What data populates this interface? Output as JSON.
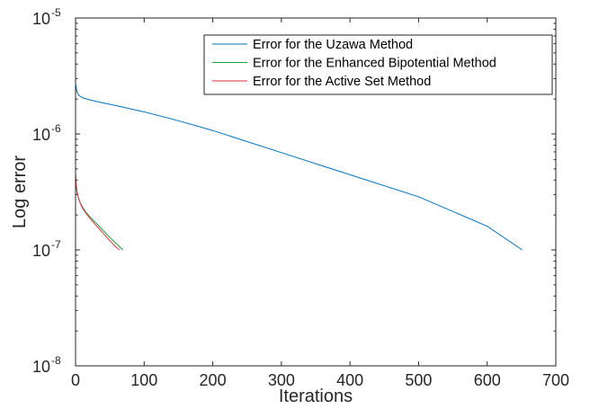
{
  "chart_data": {
    "type": "line",
    "xlabel": "Iterations",
    "ylabel": "Log error",
    "xlim": [
      0,
      700
    ],
    "ylim": [
      1e-08,
      1e-05
    ],
    "yscale": "log",
    "x_ticks": [
      "0",
      "100",
      "200",
      "300",
      "400",
      "500",
      "600",
      "700"
    ],
    "y_ticks": [
      {
        "base": "10",
        "exp": "-8"
      },
      {
        "base": "10",
        "exp": "-7"
      },
      {
        "base": "10",
        "exp": "-6"
      },
      {
        "base": "10",
        "exp": "-5"
      }
    ],
    "grid": false,
    "legend_position": "top-right",
    "series": [
      {
        "name": "Error for the Uzawa Method",
        "color": "#0072BD",
        "x": [
          0,
          2,
          5,
          10,
          20,
          40,
          60,
          100,
          150,
          200,
          300,
          400,
          500,
          600,
          651
        ],
        "y": [
          2.7e-06,
          2.3e-06,
          2.15e-06,
          2.05e-06,
          1.97e-06,
          1.85e-06,
          1.75e-06,
          1.55e-06,
          1.3e-06,
          1.07e-06,
          6.9e-07,
          4.45e-07,
          2.87e-07,
          1.6e-07,
          1e-07
        ]
      },
      {
        "name": "Error for the Enhanced Bipotential Method",
        "color": "#1A9E3A",
        "x": [
          0,
          1,
          2,
          4,
          6,
          10,
          15,
          20,
          30,
          40,
          50,
          60,
          69
        ],
        "y": [
          4.4e-07,
          3.6e-07,
          3.2e-07,
          2.85e-07,
          2.6e-07,
          2.35e-07,
          2.12e-07,
          1.95e-07,
          1.7e-07,
          1.48e-07,
          1.28e-07,
          1.12e-07,
          1e-07
        ]
      },
      {
        "name": "Error for the Active Set Method",
        "color": "#D9303A",
        "x": [
          0,
          1,
          2,
          4,
          6,
          10,
          15,
          20,
          30,
          40,
          50,
          60,
          64
        ],
        "y": [
          4.6e-07,
          3.6e-07,
          3.2e-07,
          2.85e-07,
          2.6e-07,
          2.3e-07,
          2.08e-07,
          1.9e-07,
          1.62e-07,
          1.4e-07,
          1.2e-07,
          1.04e-07,
          1e-07
        ]
      }
    ]
  }
}
